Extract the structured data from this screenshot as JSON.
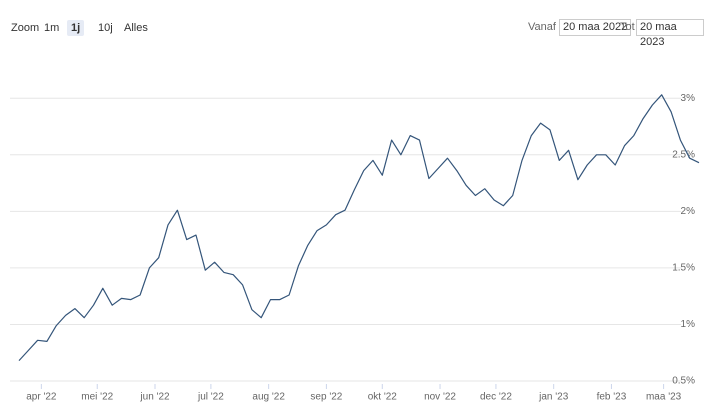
{
  "range_selector": {
    "zoom_label": "Zoom",
    "buttons": [
      "1m",
      "1j",
      "10j",
      "Alles"
    ],
    "selected": 1,
    "from_label": "Vanaf",
    "from_value": "20 maa 2022",
    "to_label": "Tot",
    "to_value": "20 maa 2023"
  },
  "chart_data": {
    "type": "line",
    "color": "#34557a",
    "x": [
      0,
      5,
      10,
      15,
      20,
      25,
      30,
      35,
      40,
      45,
      50,
      55,
      60,
      65,
      70,
      75,
      80,
      85,
      90,
      95,
      100,
      105,
      110,
      115,
      120,
      125,
      130,
      135,
      140,
      145,
      150,
      155,
      160,
      165,
      170,
      175,
      180,
      185,
      190,
      195,
      200,
      205,
      210,
      215,
      220,
      225,
      230,
      235,
      240,
      245,
      250,
      255,
      260,
      265,
      270,
      275,
      280,
      285,
      290,
      295,
      300,
      305,
      310,
      315,
      320,
      325,
      330,
      335,
      340,
      345,
      350,
      355,
      360,
      365
    ],
    "values": [
      0.68,
      0.77,
      0.86,
      0.85,
      0.99,
      1.08,
      1.14,
      1.06,
      1.17,
      1.32,
      1.17,
      1.23,
      1.22,
      1.26,
      1.5,
      1.59,
      1.88,
      2.01,
      1.75,
      1.79,
      1.48,
      1.55,
      1.46,
      1.44,
      1.35,
      1.13,
      1.06,
      1.22,
      1.22,
      1.26,
      1.52,
      1.7,
      1.83,
      1.88,
      1.97,
      2.01,
      2.19,
      2.36,
      2.45,
      2.32,
      2.63,
      2.5,
      2.67,
      2.63,
      2.29,
      2.38,
      2.47,
      2.36,
      2.23,
      2.14,
      2.2,
      2.1,
      2.05,
      2.14,
      2.45,
      2.67,
      2.78,
      2.72,
      2.45,
      2.54,
      2.28,
      2.41,
      2.5,
      2.5,
      2.41,
      2.58,
      2.67,
      2.82,
      2.94,
      3.03,
      2.88,
      2.63,
      2.47,
      2.43
    ],
    "xlim": [
      0,
      365
    ],
    "xticks": [
      {
        "value": 12,
        "label": "apr '22"
      },
      {
        "value": 42,
        "label": "mei '22"
      },
      {
        "value": 73,
        "label": "jun '22"
      },
      {
        "value": 103,
        "label": "jul '22"
      },
      {
        "value": 134,
        "label": "aug '22"
      },
      {
        "value": 165,
        "label": "sep '22"
      },
      {
        "value": 195,
        "label": "okt '22"
      },
      {
        "value": 226,
        "label": "nov '22"
      },
      {
        "value": 256,
        "label": "dec '22"
      },
      {
        "value": 287,
        "label": "jan '23"
      },
      {
        "value": 318,
        "label": "feb '23"
      },
      {
        "value": 346,
        "label": "maa '23"
      }
    ],
    "ylim": [
      0.5,
      3.4
    ],
    "yticks": [
      {
        "value": 0.5,
        "label": "0.5%"
      },
      {
        "value": 1,
        "label": "1%"
      },
      {
        "value": 1.5,
        "label": "1.5%"
      },
      {
        "value": 2,
        "label": "2%"
      },
      {
        "value": 2.5,
        "label": "2.5%"
      },
      {
        "value": 3,
        "label": "3%"
      }
    ],
    "grid": true
  }
}
